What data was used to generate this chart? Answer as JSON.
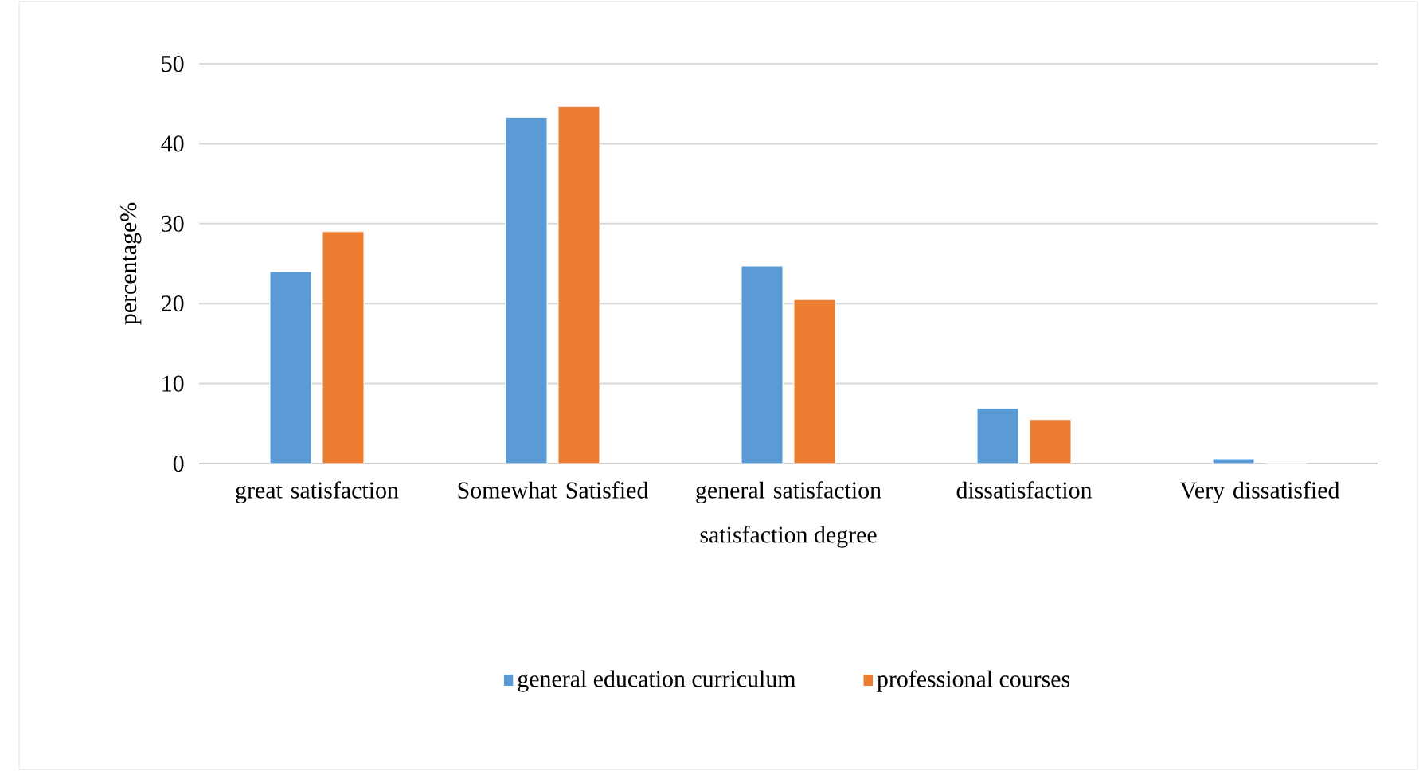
{
  "chart_data": {
    "type": "bar",
    "xlabel": "satisfaction degree",
    "ylabel": "percentage%",
    "categories": [
      "great satisfaction",
      "Somewhat Satisfied",
      "general satisfaction",
      "dissatisfaction",
      "Very dissatisfied"
    ],
    "series": [
      {
        "name": "general education curriculum",
        "color": "#5b9bd5",
        "values": [
          24.0,
          43.3,
          24.7,
          6.9,
          0.6
        ]
      },
      {
        "name": "professional courses",
        "color": "#ed7d31",
        "values": [
          29.0,
          44.7,
          20.5,
          5.5,
          0
        ]
      }
    ],
    "ylim": [
      0,
      50
    ],
    "yticks": [
      0,
      10,
      20,
      30,
      40,
      50
    ],
    "grid": "y",
    "legend": "bottom"
  }
}
